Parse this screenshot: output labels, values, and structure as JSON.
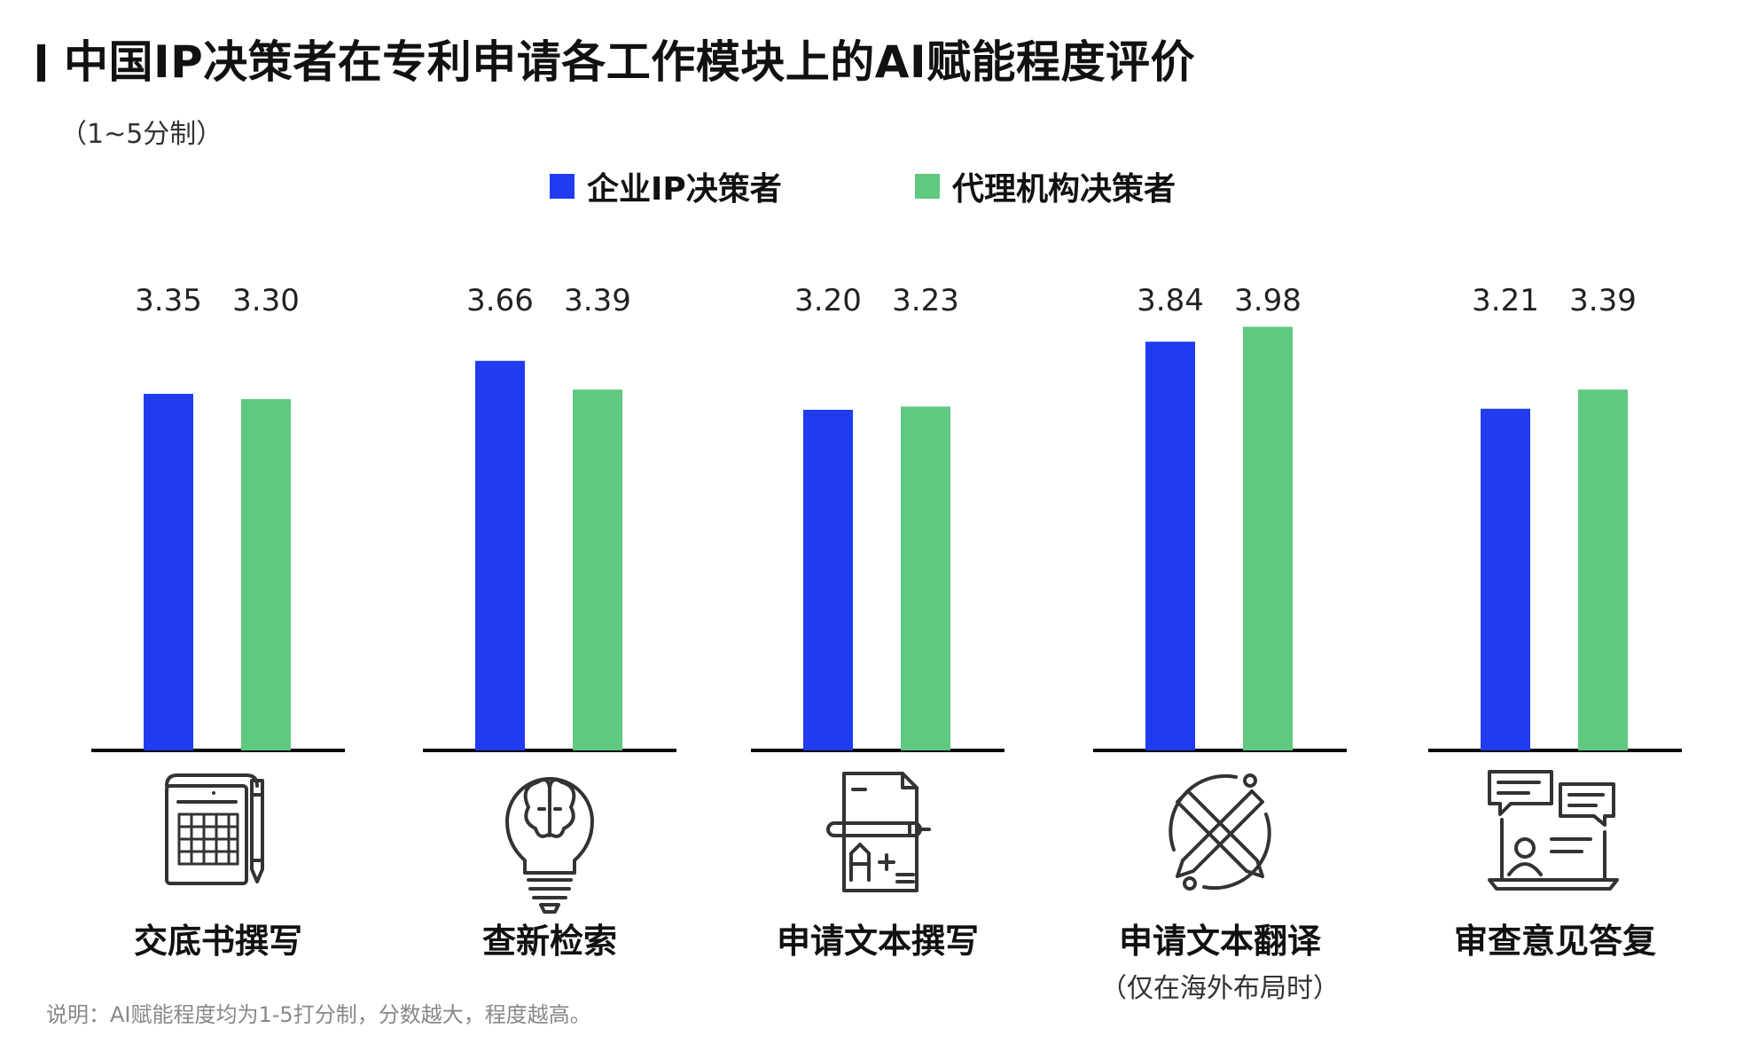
{
  "title": "中国IP决策者在专利申请各工作模块上的AI赋能程度评价",
  "subtitle": "（1~5分制）",
  "colors": {
    "enterprise": "#1f3cf0",
    "agency": "#5ec97f",
    "axis": "#000000",
    "text": "#111111",
    "note": "#888888",
    "icon": "#333333"
  },
  "legend": [
    {
      "label": "企业IP决策者",
      "color": "#1f3cf0"
    },
    {
      "label": "代理机构决策者",
      "color": "#5ec97f"
    }
  ],
  "chart_data": {
    "type": "bar",
    "categories": [
      "交底书撰写",
      "查新检索",
      "申请文本撰写",
      "申请文本翻译",
      "审查意见答复"
    ],
    "category_notes": [
      "",
      "",
      "",
      "（仅在海外布局时）",
      ""
    ],
    "icons": [
      "document-grid-pencil-icon",
      "brain-lightbulb-icon",
      "document-grade-pen-icon",
      "crossed-pencils-cycle-icon",
      "chat-video-call-icon"
    ],
    "series": [
      {
        "name": "企业IP决策者",
        "values": [
          3.35,
          3.66,
          3.2,
          3.84,
          3.21
        ]
      },
      {
        "name": "代理机构决策者",
        "values": [
          3.3,
          3.39,
          3.23,
          3.98,
          3.39
        ]
      }
    ],
    "value_labels": [
      [
        "3.35",
        "3.66",
        "3.20",
        "3.84",
        "3.21"
      ],
      [
        "3.30",
        "3.39",
        "3.23",
        "3.98",
        "3.39"
      ]
    ],
    "ylim": [
      0,
      5
    ],
    "grid": false,
    "legend_position": "top-center"
  },
  "footnote": "说明：AI赋能程度均为1-5打分制，分数越大，程度越高。"
}
